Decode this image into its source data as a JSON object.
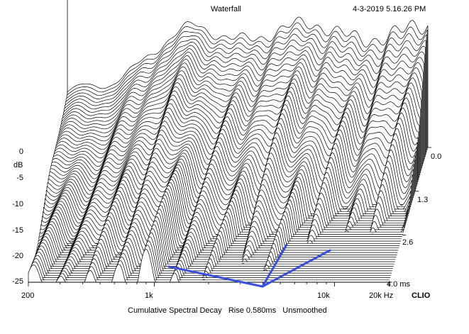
{
  "header": {
    "title": "Waterfall",
    "timestamp": "4-3-2019 5.16.26 PM",
    "brand": "CLIO"
  },
  "footer": {
    "caption": "Cumulative Spectral Decay   Rise 0.580ms   Unsmoothed"
  },
  "chart_data": {
    "type": "waterfall",
    "title": "Waterfall",
    "xlabel": "Hz",
    "ylabel": "dB",
    "zlabel": "ms",
    "x_scale": "log",
    "xlim": [
      200,
      20000
    ],
    "ylim": [
      -25,
      0
    ],
    "zlim": [
      0.0,
      4.0
    ],
    "x_ticks": [
      {
        "value": 200,
        "label": "200"
      },
      {
        "value": 1000,
        "label": "1k"
      },
      {
        "value": 10000,
        "label": "10k"
      },
      {
        "value": 20000,
        "label": "20k Hz"
      }
    ],
    "y_ticks": [
      {
        "value": 0,
        "label": "0"
      },
      {
        "value": -5,
        "label": "-5"
      },
      {
        "value": -10,
        "label": "-10"
      },
      {
        "value": -15,
        "label": "-15"
      },
      {
        "value": -20,
        "label": "-20"
      },
      {
        "value": -25,
        "label": "-25"
      }
    ],
    "z_ticks": [
      {
        "value": 0.0,
        "label": "0.0"
      },
      {
        "value": 1.3,
        "label": "1.3"
      },
      {
        "value": 2.6,
        "label": "2.6"
      },
      {
        "value": 4.0,
        "label": "4.0 ms"
      }
    ],
    "slice_count": 60,
    "rise_ms": 0.58,
    "smoothing": "Unsmoothed",
    "annotation_color": "#3a50d8"
  }
}
